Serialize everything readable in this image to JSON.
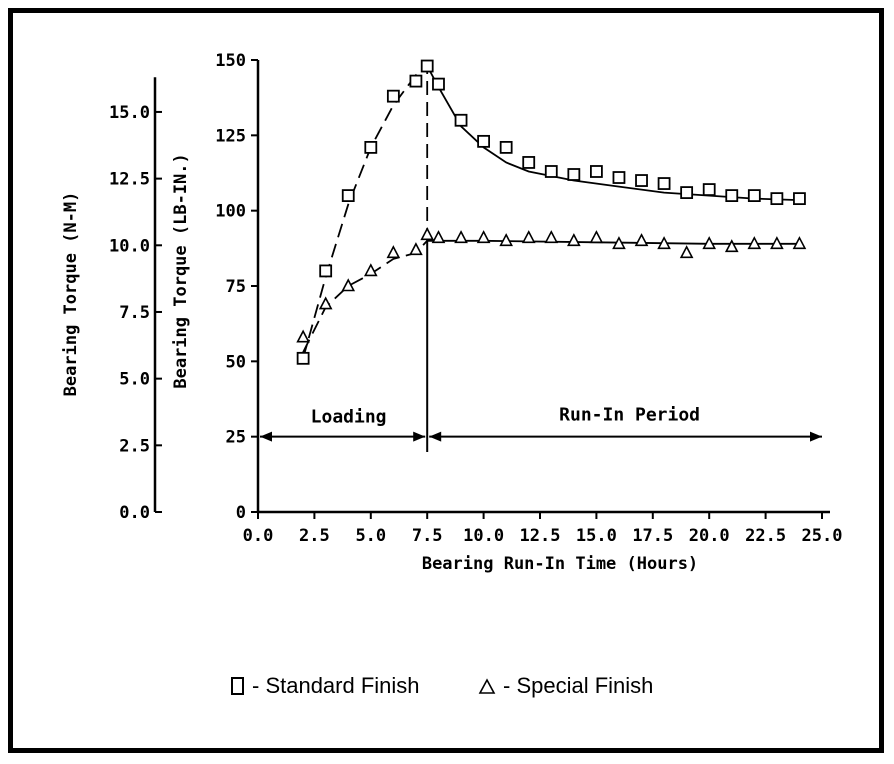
{
  "chart_data": {
    "type": "scatter",
    "title": "",
    "xlabel": "Bearing Run-In Time (Hours)",
    "ylabel_left": "Bearing Torque (N-M)",
    "ylabel_right": "Bearing Torque (LB-IN.)",
    "xlim": [
      0,
      25
    ],
    "ylim_lbin": [
      0,
      150
    ],
    "ylim_nm": [
      0,
      17
    ],
    "x_ticks": [
      "0.0",
      "2.5",
      "5.0",
      "7.5",
      "10.0",
      "12.5",
      "15.0",
      "17.5",
      "20.0",
      "22.5",
      "25.0"
    ],
    "y_ticks_lbin": [
      "0",
      "25",
      "50",
      "75",
      "100",
      "125",
      "150"
    ],
    "y_ticks_nm": [
      "0.0",
      "2.5",
      "5.0",
      "7.5",
      "10.0",
      "12.5",
      "15.0"
    ],
    "grid": false,
    "legend_position": "bottom-center",
    "series": [
      {
        "name": "Standard Finish",
        "marker": "square",
        "x": [
          2,
          3,
          4,
          5,
          6,
          7,
          7.5,
          8,
          9,
          10,
          11,
          12,
          13,
          14,
          15,
          16,
          17,
          18,
          19,
          20,
          21,
          22,
          23,
          24
        ],
        "y": [
          51,
          80,
          105,
          121,
          138,
          143,
          148,
          142,
          130,
          123,
          121,
          116,
          113,
          112,
          113,
          111,
          110,
          109,
          106,
          107,
          105,
          105,
          104,
          104
        ]
      },
      {
        "name": "Special Finish",
        "marker": "triangle",
        "x": [
          2,
          3,
          4,
          5,
          6,
          7,
          7.5,
          8,
          9,
          10,
          11,
          12,
          13,
          14,
          15,
          16,
          17,
          18,
          19,
          20,
          21,
          22,
          23,
          24
        ],
        "y": [
          58,
          69,
          75,
          80,
          86,
          87,
          92,
          91,
          91,
          91,
          90,
          91,
          91,
          90,
          91,
          89,
          90,
          89,
          86,
          89,
          88,
          89,
          89,
          89
        ]
      }
    ],
    "trend_standard_loading": [
      [
        2,
        51
      ],
      [
        3,
        78
      ],
      [
        4,
        102
      ],
      [
        5,
        121
      ],
      [
        6,
        135
      ],
      [
        7,
        145
      ],
      [
        7.5,
        148
      ]
    ],
    "trend_standard_runin": [
      [
        7.5,
        148
      ],
      [
        8,
        141
      ],
      [
        9,
        128
      ],
      [
        10,
        121
      ],
      [
        11,
        116
      ],
      [
        12,
        113
      ],
      [
        14,
        110
      ],
      [
        16,
        108
      ],
      [
        18,
        106
      ],
      [
        20,
        105
      ],
      [
        22,
        104
      ],
      [
        24,
        103.5
      ]
    ],
    "trend_special_loading": [
      [
        2,
        53
      ],
      [
        3,
        68
      ],
      [
        4,
        75
      ],
      [
        5,
        79
      ],
      [
        6,
        84
      ],
      [
        7,
        86
      ],
      [
        7.5,
        90
      ]
    ],
    "trend_special_runin": [
      [
        7.5,
        90
      ],
      [
        10,
        90
      ],
      [
        15,
        89.5
      ],
      [
        20,
        89
      ],
      [
        24,
        89
      ]
    ],
    "annotations": {
      "loading": "Loading",
      "run_in": "Run-In Period",
      "boundary_x": 7.5,
      "arrow_y": 25
    }
  },
  "legend": {
    "text": "- Standard Finish",
    "text2": "- Special Finish"
  }
}
